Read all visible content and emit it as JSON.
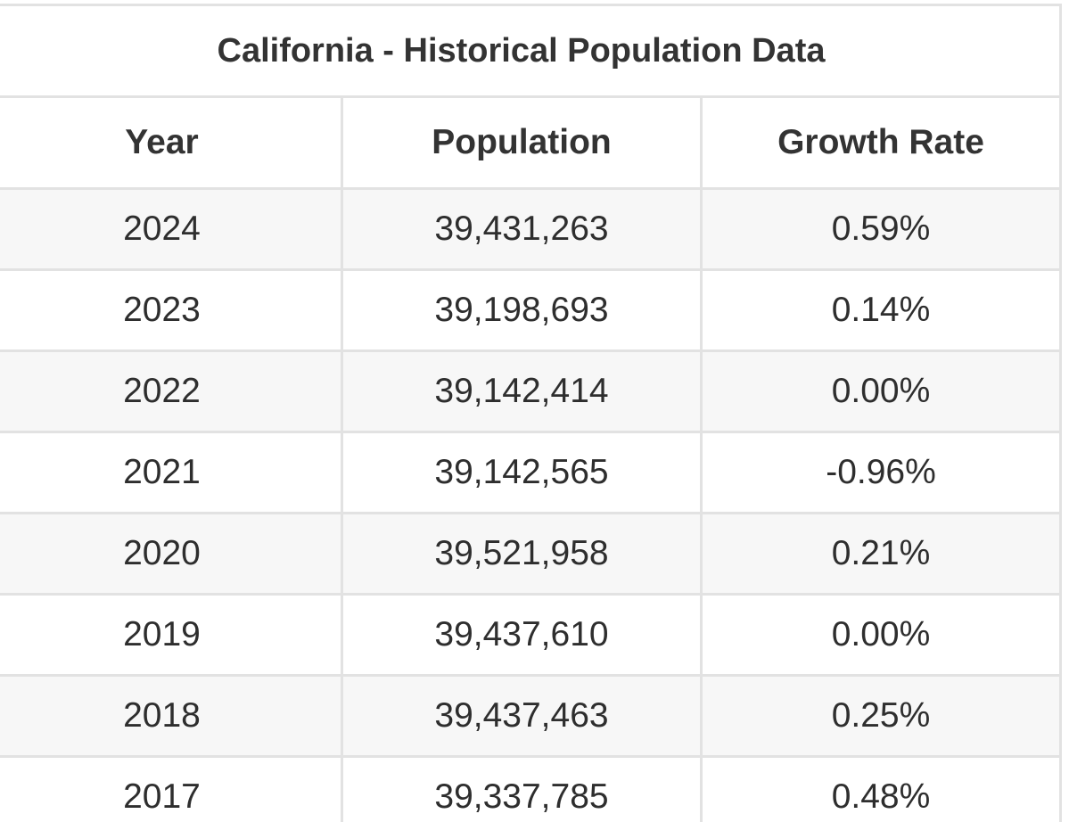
{
  "table": {
    "title": "California - Historical Population Data",
    "headers": [
      "Year",
      "Population",
      "Growth Rate"
    ],
    "rows": [
      [
        "2024",
        "39,431,263",
        "0.59%"
      ],
      [
        "2023",
        "39,198,693",
        "0.14%"
      ],
      [
        "2022",
        "39,142,414",
        "0.00%"
      ],
      [
        "2021",
        "39,142,565",
        "-0.96%"
      ],
      [
        "2020",
        "39,521,958",
        "0.21%"
      ],
      [
        "2019",
        "39,437,610",
        "0.00%"
      ],
      [
        "2018",
        "39,437,463",
        "0.25%"
      ],
      [
        "2017",
        "39,337,785",
        "0.48%"
      ]
    ]
  },
  "colors": {
    "border": "#e2e2e2",
    "striped_row": "#f7f7f7",
    "text": "#2e2e2e"
  }
}
